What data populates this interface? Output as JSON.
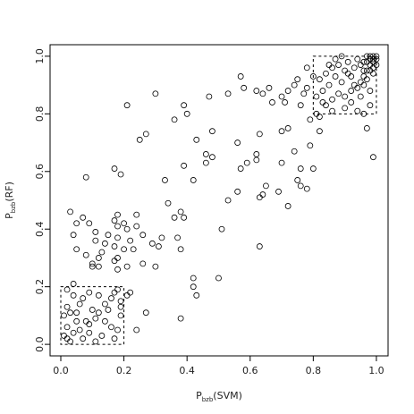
{
  "chart_data": {
    "type": "scatter",
    "xlabel": {
      "base": "P",
      "sub": "bzb",
      "tail": "(SVM)"
    },
    "ylabel": {
      "base": "P",
      "sub": "bzb",
      "tail": "(RF)"
    },
    "x": [
      0.3,
      0.21,
      0.39,
      0.4,
      0.36,
      0.27,
      0.25,
      0.48,
      0.43,
      0.47,
      0.57,
      0.58,
      0.53,
      0.62,
      0.64,
      0.66,
      0.7,
      0.72,
      0.74,
      0.75,
      0.67,
      0.71,
      0.78,
      0.78,
      0.76,
      0.81,
      0.79,
      0.82,
      0.82,
      0.79,
      0.72,
      0.7,
      0.74,
      0.63,
      0.62,
      0.56,
      0.57,
      0.59,
      0.62,
      0.48,
      0.46,
      0.46,
      0.39,
      0.42,
      0.33,
      0.34,
      0.38,
      0.39,
      0.36,
      0.37,
      0.38,
      0.31,
      0.29,
      0.26,
      0.3,
      0.26,
      0.24,
      0.24,
      0.22,
      0.23,
      0.21,
      0.17,
      0.19,
      0.18,
      0.17,
      0.18,
      0.2,
      0.15,
      0.18,
      0.17,
      0.2,
      0.18,
      0.17,
      0.18,
      0.21,
      0.13,
      0.11,
      0.14,
      0.1,
      0.12,
      0.1,
      0.05,
      0.04,
      0.03,
      0.05,
      0.07,
      0.09,
      0.08,
      0.11,
      0.08,
      0.12,
      0.22,
      0.21,
      0.27,
      0.24,
      0.32,
      0.42,
      0.42,
      0.43,
      0.38,
      0.5,
      0.51,
      0.53,
      0.56,
      0.63,
      0.64,
      0.65,
      0.63,
      0.69,
      0.72,
      0.75,
      0.76,
      0.78,
      0.76,
      0.7,
      0.8,
      0.02,
      0.04,
      0.06,
      0.02,
      0.03,
      0.01,
      0.05,
      0.02,
      0.04,
      0.02,
      0.07,
      0.09,
      0.08,
      0.11,
      0.07,
      0.1,
      0.12,
      0.14,
      0.15,
      0.17,
      0.19,
      0.19,
      0.19,
      0.18,
      0.17,
      0.13,
      0.11,
      0.09,
      0.14,
      0.16,
      0.18,
      0.01,
      0.03,
      0.05,
      0.06,
      0.12,
      0.16,
      0.09,
      0.04,
      0.82,
      0.84,
      0.86,
      0.85,
      0.87,
      0.88,
      0.89,
      0.9,
      0.91,
      0.92,
      0.93,
      0.94,
      0.95,
      0.96,
      0.97,
      0.98,
      0.99,
      0.98,
      0.97,
      0.96,
      0.95,
      0.94,
      0.93,
      0.92,
      0.9,
      0.88,
      0.86,
      0.84,
      0.83,
      0.81,
      0.85,
      0.87,
      0.89,
      0.91,
      0.99,
      1.0,
      0.99,
      1.0,
      0.98,
      0.97,
      0.99,
      0.96,
      0.98,
      0.95,
      0.92,
      0.94,
      0.97,
      0.99,
      0.98,
      0.96,
      0.9,
      0.86,
      1.0,
      0.99,
      0.98,
      0.97,
      0.96,
      0.83,
      0.8,
      0.77
    ],
    "y": [
      0.87,
      0.83,
      0.83,
      0.8,
      0.78,
      0.73,
      0.71,
      0.74,
      0.71,
      0.86,
      0.93,
      0.89,
      0.87,
      0.88,
      0.87,
      0.89,
      0.86,
      0.88,
      0.9,
      0.92,
      0.84,
      0.84,
      0.89,
      0.96,
      0.83,
      0.8,
      0.78,
      0.79,
      0.74,
      0.69,
      0.75,
      0.74,
      0.67,
      0.73,
      0.66,
      0.7,
      0.61,
      0.63,
      0.64,
      0.65,
      0.66,
      0.63,
      0.62,
      0.57,
      0.57,
      0.49,
      0.46,
      0.44,
      0.44,
      0.37,
      0.33,
      0.34,
      0.35,
      0.28,
      0.27,
      0.38,
      0.41,
      0.45,
      0.36,
      0.33,
      0.4,
      0.61,
      0.59,
      0.45,
      0.43,
      0.41,
      0.42,
      0.38,
      0.37,
      0.34,
      0.33,
      0.3,
      0.29,
      0.26,
      0.27,
      0.32,
      0.36,
      0.35,
      0.28,
      0.3,
      0.27,
      0.33,
      0.38,
      0.46,
      0.42,
      0.44,
      0.42,
      0.58,
      0.39,
      0.31,
      0.27,
      0.18,
      0.17,
      0.11,
      0.05,
      0.37,
      0.23,
      0.2,
      0.17,
      0.09,
      0.23,
      0.4,
      0.5,
      0.53,
      0.51,
      0.52,
      0.55,
      0.34,
      0.53,
      0.48,
      0.57,
      0.55,
      0.54,
      0.61,
      0.63,
      0.61,
      0.19,
      0.17,
      0.14,
      0.13,
      0.11,
      0.1,
      0.08,
      0.06,
      0.04,
      0.02,
      0.02,
      0.04,
      0.08,
      0.09,
      0.16,
      0.12,
      0.17,
      0.14,
      0.12,
      0.18,
      0.15,
      0.13,
      0.1,
      0.05,
      0.02,
      0.03,
      0.01,
      0.07,
      0.08,
      0.16,
      0.19,
      0.03,
      0.01,
      0.11,
      0.05,
      0.11,
      0.06,
      0.18,
      0.21,
      0.92,
      0.94,
      0.96,
      0.9,
      0.93,
      0.97,
      0.91,
      0.95,
      0.98,
      0.93,
      0.96,
      0.99,
      0.97,
      0.98,
      1.0,
      0.99,
      1.0,
      0.97,
      0.95,
      0.93,
      0.91,
      0.89,
      0.9,
      0.88,
      0.86,
      0.87,
      0.85,
      0.83,
      0.88,
      0.86,
      0.97,
      0.99,
      1.0,
      0.94,
      0.98,
      0.99,
      0.96,
      0.97,
      0.95,
      0.92,
      0.94,
      0.9,
      0.88,
      0.86,
      0.84,
      0.81,
      0.75,
      0.65,
      0.83,
      0.8,
      0.82,
      0.81,
      1.0,
      0.99,
      1.0,
      0.98,
      0.95,
      0.84,
      0.93,
      0.87
    ],
    "boxes": [
      {
        "x": [
          0,
          0.2
        ],
        "y": [
          0,
          0.2
        ]
      },
      {
        "x": [
          0.8,
          1
        ],
        "y": [
          0.8,
          1
        ]
      }
    ],
    "xlim": [
      -0.034,
      1.037
    ],
    "ylim": [
      -0.04,
      1.04
    ],
    "xticks": [
      {
        "value": 0,
        "label": "0.0"
      },
      0.2,
      0.4,
      0.6,
      0.8,
      {
        "value": 1,
        "label": "1.0"
      }
    ],
    "yticks": [
      {
        "value": 0,
        "label": "0.0"
      },
      0.2,
      0.4,
      0.6,
      0.8,
      {
        "value": 1,
        "label": "1.0"
      }
    ],
    "color": "#000000"
  }
}
